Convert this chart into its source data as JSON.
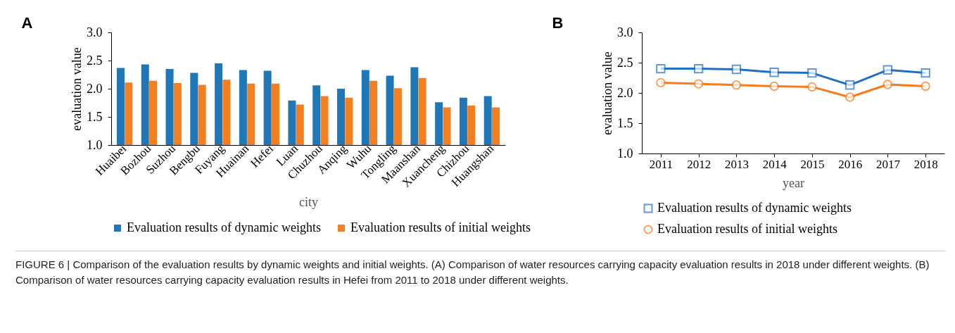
{
  "chart_data": [
    {
      "type": "bar",
      "title": "A",
      "xlabel": "city",
      "ylabel": "evaluation value",
      "categories": [
        "Huaibei",
        "Bozhou",
        "Suzhou",
        "Bengbu",
        "Fuyang",
        "Huainan",
        "Hefei",
        "Luan",
        "Chuzhou",
        "Anqing",
        "Wuhu",
        "Tongling",
        "Maanshan",
        "Xuancheng",
        "Chizhou",
        "Huangshan"
      ],
      "series": [
        {
          "name": "Evaluation results of dynamic weights",
          "color": "#2077b8",
          "values": [
            2.37,
            2.43,
            2.35,
            2.28,
            2.45,
            2.33,
            2.32,
            1.79,
            2.06,
            2.0,
            2.33,
            2.23,
            2.38,
            1.76,
            1.84,
            1.87
          ]
        },
        {
          "name": "Evaluation results of initial weights",
          "color": "#f47f20",
          "values": [
            2.11,
            2.14,
            2.1,
            2.07,
            2.16,
            2.09,
            2.09,
            1.72,
            1.87,
            1.84,
            2.14,
            2.01,
            2.19,
            1.67,
            1.7,
            1.67
          ]
        }
      ],
      "ylim": [
        1.0,
        3.0
      ],
      "yticks": [
        {
          "value": 1.0,
          "label": "1.0"
        },
        {
          "value": 1.5,
          "label": "1.5"
        },
        {
          "value": 2.0,
          "label": "2.0"
        },
        {
          "value": 2.5,
          "label": "2.5"
        },
        {
          "value": 3.0,
          "label": "3.0"
        }
      ],
      "grid": false,
      "legend": "bottom",
      "annotations": [
        "FIGURE 6 | Comparison of the evaluation results by dynamic weights and initial weights. (A) Comparison of water resources carrying capacity evaluation results in 2018 under different weights. (B) Comparison of water resources carrying capacity evaluation results in Hefei from 2011 to 2018 under different weights."
      ]
    },
    {
      "type": "line",
      "title": "B",
      "xlabel": "year",
      "ylabel": "evaluation value",
      "categories": [
        "2011",
        "2012",
        "2013",
        "2014",
        "2015",
        "2016",
        "2017",
        "2018"
      ],
      "series": [
        {
          "name": "Evaluation results of dynamic weights",
          "color": "#1f6fc6",
          "marker": "square",
          "values": [
            2.4,
            2.4,
            2.39,
            2.34,
            2.33,
            2.13,
            2.38,
            2.33
          ]
        },
        {
          "name": "Evaluation results of initial weights",
          "color": "#f57c1f",
          "marker": "circle",
          "values": [
            2.17,
            2.15,
            2.13,
            2.11,
            2.1,
            1.93,
            2.14,
            2.11
          ]
        }
      ],
      "ylim": [
        1.0,
        3.0
      ],
      "yticks": [
        {
          "value": 1.0,
          "label": "1.0"
        },
        {
          "value": 1.5,
          "label": "1.5"
        },
        {
          "value": 2.0,
          "label": "2.0"
        },
        {
          "value": 2.5,
          "label": "2.5"
        },
        {
          "value": 3.0,
          "label": "3.0"
        }
      ],
      "grid": false,
      "legend": "bottom",
      "line_style": "solid"
    }
  ]
}
